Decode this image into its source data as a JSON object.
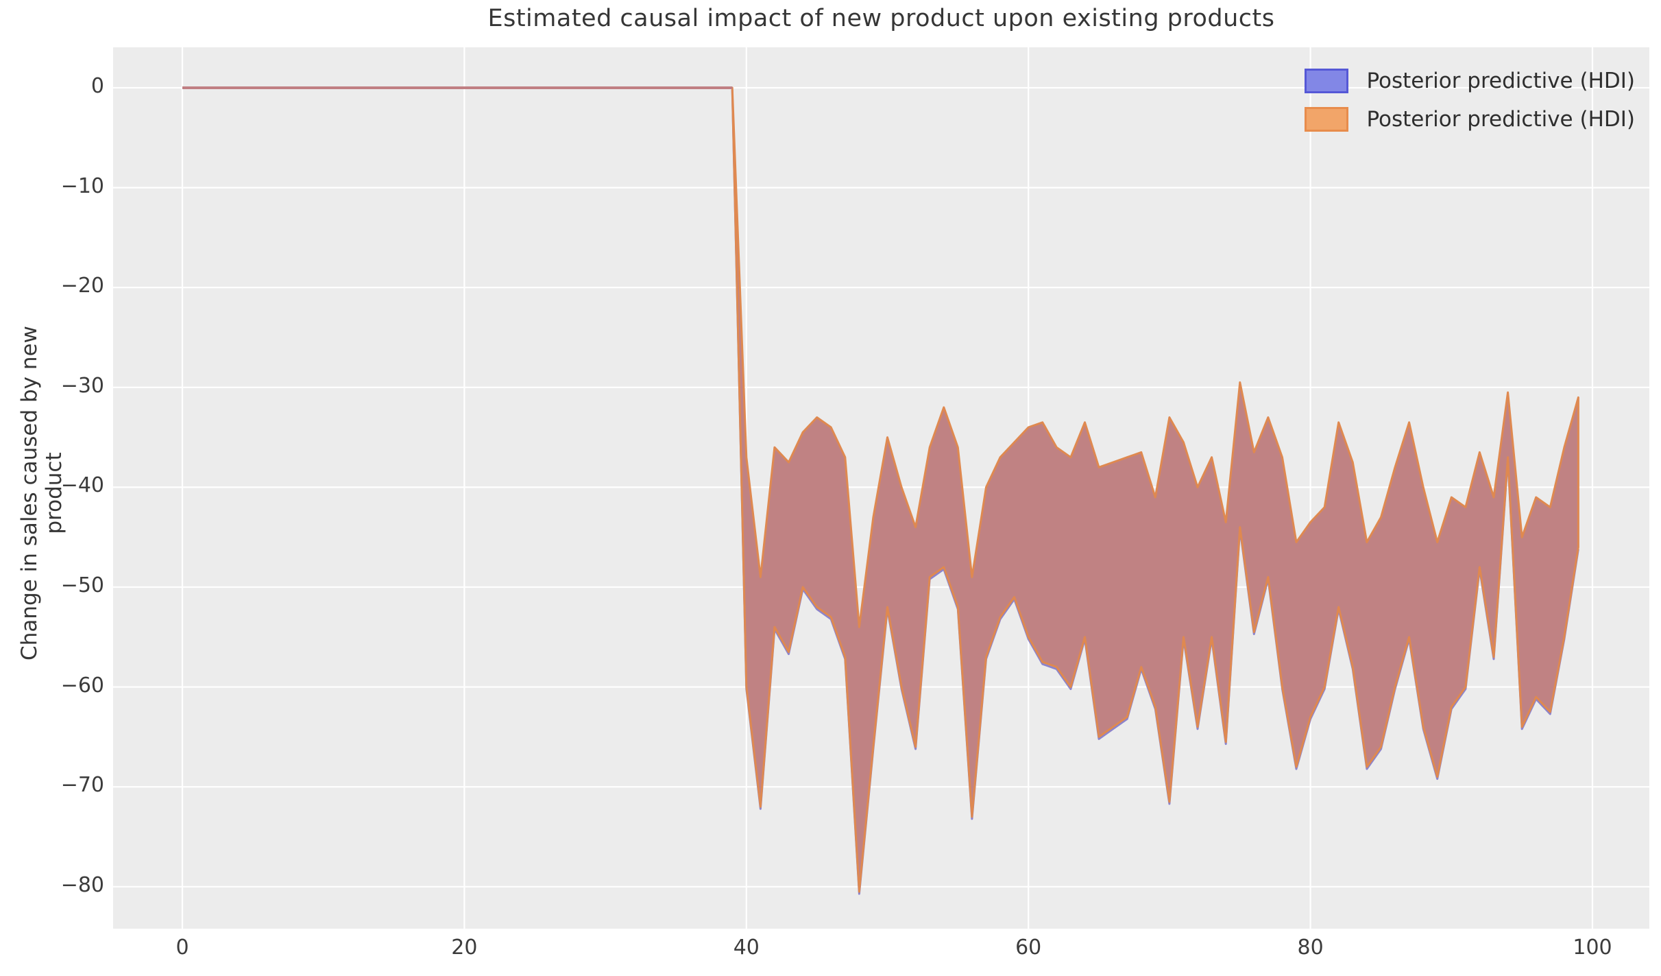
{
  "figure": {
    "title": "Estimated causal impact of new product upon existing products",
    "ylabel": "Change in sales caused by new product",
    "xlabel": ""
  },
  "legend": {
    "position": "upper right",
    "entries": [
      {
        "label": "Posterior predictive (HDI)",
        "fill": "#8287e6",
        "edge": "#5558d6"
      },
      {
        "label": "Posterior predictive (HDI)",
        "fill": "#f2a569",
        "edge": "#e88c4c"
      }
    ]
  },
  "colors": {
    "page_bg": "#ffffff",
    "plot_bg": "#ececec",
    "grid": "#ffffff",
    "text": "#363636",
    "tick_text": "#3c3c3c",
    "band_fill": "#c08283",
    "band_edge_orange": "#df8950",
    "band_edge_purple": "#8c83cb",
    "pre_line": "#c07f83"
  },
  "chart_data": {
    "type": "area",
    "title": "Estimated causal impact of new product upon existing products",
    "xlabel": "",
    "ylabel": "Change in sales caused by new product",
    "xlim": [
      -5,
      104
    ],
    "ylim": [
      -84.2,
      4.1
    ],
    "grid": true,
    "legend_position": "upper right",
    "xticks": [
      {
        "v": 0,
        "label": "0"
      },
      {
        "v": 20,
        "label": "20"
      },
      {
        "v": 40,
        "label": "40"
      },
      {
        "v": 60,
        "label": "60"
      },
      {
        "v": 80,
        "label": "80"
      },
      {
        "v": 100,
        "label": "100"
      }
    ],
    "yticks": [
      {
        "v": 0,
        "label": "0"
      },
      {
        "v": -10,
        "label": "−10"
      },
      {
        "v": -20,
        "label": "−20"
      },
      {
        "v": -30,
        "label": "−30"
      },
      {
        "v": -40,
        "label": "−40"
      },
      {
        "v": -50,
        "label": "−50"
      },
      {
        "v": -60,
        "label": "−60"
      },
      {
        "v": -70,
        "label": "−70"
      },
      {
        "v": -80,
        "label": "−80"
      }
    ],
    "series": [
      {
        "name": "pre-intervention zero line",
        "type": "line",
        "x": [
          0,
          39
        ],
        "y": [
          0,
          0
        ]
      },
      {
        "name": "posterior predictive HDI band (overlapping blue + orange)",
        "type": "band",
        "x": [
          39,
          40,
          41,
          42,
          43,
          44,
          45,
          46,
          47,
          48,
          49,
          50,
          51,
          52,
          53,
          54,
          55,
          56,
          57,
          58,
          59,
          60,
          61,
          62,
          63,
          64,
          65,
          66,
          67,
          68,
          69,
          70,
          71,
          72,
          73,
          74,
          75,
          76,
          77,
          78,
          79,
          80,
          81,
          82,
          83,
          84,
          85,
          86,
          87,
          88,
          89,
          90,
          91,
          92,
          93,
          94,
          95,
          96,
          97,
          98,
          99
        ],
        "upper": [
          0,
          -37,
          -49,
          -36,
          -37.5,
          -34.5,
          -33,
          -34,
          -37,
          -54,
          -43,
          -35,
          -40,
          -44,
          -36,
          -32,
          -36,
          -49,
          -40,
          -37,
          -35.5,
          -34,
          -33.5,
          -36,
          -37,
          -33.5,
          -38,
          -37.5,
          -37,
          -36.5,
          -41,
          -33,
          -35.5,
          -40,
          -37,
          -43.5,
          -29.5,
          -36.5,
          -33,
          -37,
          -45.5,
          -43.5,
          -42,
          -33.5,
          -37.5,
          -45.5,
          -43,
          -38,
          -33.5,
          -40,
          -45.5,
          -41,
          -42,
          -36.5,
          -41,
          -30.5,
          -45,
          -41,
          -42,
          -36,
          -31
        ],
        "lower": [
          0,
          -60,
          -72,
          -54,
          -56.5,
          -50,
          -52,
          -53,
          -57,
          -80.5,
          -66,
          -52,
          -60,
          -66,
          -49,
          -48,
          -52,
          -73,
          -57,
          -53,
          -51,
          -55,
          -57.5,
          -58,
          -60,
          -55,
          -65,
          -64,
          -63,
          -58,
          -62,
          -71.5,
          -55,
          -64,
          -55,
          -65.5,
          -44,
          -54.5,
          -49,
          -60,
          -68,
          -63,
          -60,
          -52,
          -58,
          -68,
          -66,
          -60,
          -55,
          -64,
          -69,
          -62,
          -60,
          -48,
          -57,
          -37,
          -64,
          -61,
          -62.5,
          -55,
          -46
        ]
      }
    ]
  }
}
